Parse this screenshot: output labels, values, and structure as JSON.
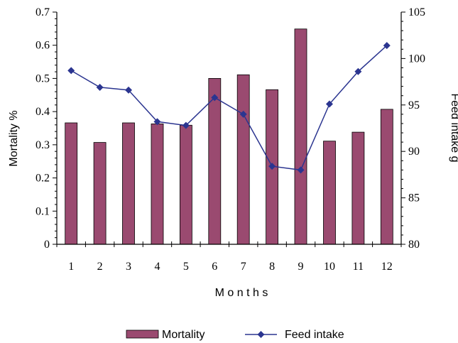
{
  "chart_data": {
    "type": "bar+line",
    "categories": [
      "1",
      "2",
      "3",
      "4",
      "5",
      "6",
      "7",
      "8",
      "9",
      "10",
      "11",
      "12"
    ],
    "series": [
      {
        "name": "Mortality",
        "type": "bar",
        "axis": "left",
        "color": "#9a4a70",
        "values": [
          0.366,
          0.307,
          0.366,
          0.363,
          0.359,
          0.5,
          0.511,
          0.466,
          0.649,
          0.311,
          0.338,
          0.407
        ]
      },
      {
        "name": "Feed intake",
        "type": "line",
        "axis": "right",
        "color": "#2b3590",
        "marker": "diamond",
        "values": [
          98.7,
          96.9,
          96.6,
          93.2,
          92.8,
          95.8,
          94.0,
          88.4,
          88.0,
          95.1,
          98.6,
          101.4
        ]
      }
    ],
    "xlabel": "M o n t h s",
    "ylabel": "Mortality %",
    "y2label": "Feed intake g",
    "ylim": [
      0,
      0.7
    ],
    "y2lim": [
      80,
      105
    ],
    "yticks": [
      "0",
      "0.1",
      "0.2",
      "0.3",
      "0.4",
      "0.5",
      "0.6",
      "0.7"
    ],
    "y2ticks": [
      "80",
      "85",
      "90",
      "95",
      "100",
      "105"
    ],
    "grid": false,
    "legend_position": "bottom-center"
  }
}
